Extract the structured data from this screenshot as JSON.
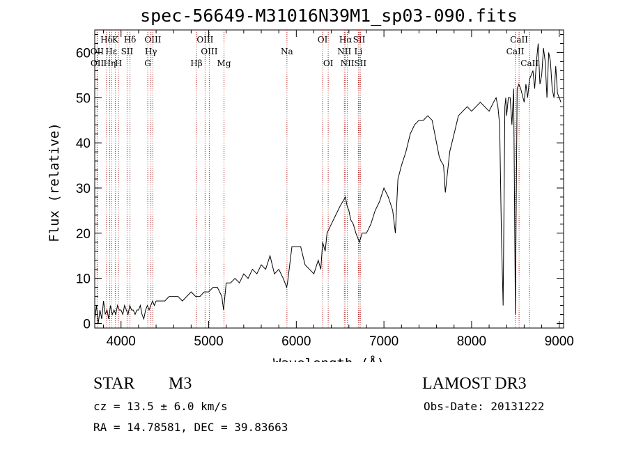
{
  "chart_data": {
    "type": "line",
    "title": "spec-56649-M31016N39M1_sp03-090.fits",
    "xlabel": "Wavelength (Å)",
    "ylabel": "Flux (relative)",
    "xlim": [
      3700,
      9050
    ],
    "ylim": [
      -1,
      65
    ],
    "xticks": [
      4000,
      5000,
      6000,
      7000,
      8000,
      9000
    ],
    "yticks": [
      0,
      10,
      20,
      30,
      40,
      50,
      60
    ],
    "spectrum": {
      "name": "flux",
      "x": [
        3700,
        3720,
        3740,
        3760,
        3780,
        3800,
        3820,
        3840,
        3860,
        3880,
        3900,
        3920,
        3940,
        3960,
        3980,
        4000,
        4020,
        4040,
        4060,
        4080,
        4100,
        4120,
        4140,
        4160,
        4180,
        4200,
        4220,
        4240,
        4260,
        4280,
        4300,
        4320,
        4340,
        4360,
        4380,
        4400,
        4450,
        4500,
        4550,
        4600,
        4650,
        4700,
        4750,
        4800,
        4850,
        4900,
        4950,
        5000,
        5050,
        5100,
        5150,
        5170,
        5200,
        5250,
        5300,
        5350,
        5400,
        5450,
        5500,
        5550,
        5600,
        5650,
        5700,
        5750,
        5800,
        5850,
        5890,
        5900,
        5950,
        6000,
        6050,
        6100,
        6150,
        6200,
        6250,
        6280,
        6300,
        6330,
        6350,
        6400,
        6450,
        6500,
        6530,
        6560,
        6580,
        6600,
        6620,
        6650,
        6680,
        6700,
        6720,
        6750,
        6800,
        6850,
        6900,
        6950,
        7000,
        7050,
        7100,
        7130,
        7160,
        7200,
        7250,
        7300,
        7350,
        7400,
        7450,
        7500,
        7550,
        7600,
        7630,
        7650,
        7680,
        7700,
        7750,
        7800,
        7850,
        7900,
        7950,
        8000,
        8050,
        8100,
        8150,
        8200,
        8250,
        8280,
        8300,
        8320,
        8340,
        8360,
        8380,
        8390,
        8400,
        8420,
        8440,
        8460,
        8480,
        8500,
        8520,
        8540,
        8560,
        8600,
        8620,
        8640,
        8660,
        8680,
        8700,
        8720,
        8740,
        8760,
        8780,
        8800,
        8820,
        8840,
        8860,
        8880,
        8900,
        8920,
        8940,
        8960,
        8980,
        9000,
        9020
      ],
      "y": [
        1,
        4,
        0,
        3,
        1,
        5,
        2,
        3,
        1,
        4,
        2,
        3,
        2,
        4,
        3,
        3,
        2,
        4,
        3,
        2,
        4,
        3,
        3,
        2,
        3,
        3,
        4,
        2,
        1,
        3,
        4,
        3,
        4,
        5,
        4,
        5,
        5,
        5,
        6,
        6,
        6,
        5,
        6,
        7,
        6,
        6,
        7,
        7,
        8,
        8,
        6,
        3,
        9,
        9,
        10,
        9,
        11,
        10,
        12,
        11,
        13,
        12,
        15,
        11,
        12,
        10,
        8,
        9,
        17,
        17,
        17,
        13,
        12,
        11,
        14,
        12,
        18,
        16,
        20,
        22,
        24,
        26,
        27,
        28,
        26,
        25,
        23,
        22,
        20,
        19,
        18,
        20,
        20,
        22,
        25,
        27,
        30,
        28,
        25,
        20,
        32,
        35,
        38,
        42,
        44,
        45,
        45,
        46,
        45,
        40,
        37,
        36,
        35,
        29,
        38,
        42,
        46,
        47,
        48,
        47,
        48,
        49,
        48,
        47,
        49,
        50,
        48,
        44,
        20,
        4,
        48,
        50,
        46,
        50,
        50,
        44,
        52,
        2,
        52,
        53,
        52,
        49,
        53,
        50,
        54,
        55,
        56,
        52,
        58,
        62,
        53,
        55,
        61,
        58,
        50,
        60,
        58,
        52,
        50,
        57,
        51,
        50,
        49
      ]
    },
    "line_markers": [
      {
        "label": "Hδ",
        "wavelength": 3835,
        "row": 1
      },
      {
        "label": "Hε",
        "wavelength": 3889,
        "row": 2
      },
      {
        "label": "OII",
        "wavelength": 3727,
        "row": 2
      },
      {
        "label": "OII",
        "wavelength": 3729,
        "row": 3
      },
      {
        "label": "Hη",
        "wavelength": 3870,
        "row": 3
      },
      {
        "label": "K",
        "wavelength": 3934,
        "row": 1
      },
      {
        "label": "SII",
        "wavelength": 4069,
        "row": 2
      },
      {
        "label": "H",
        "wavelength": 3970,
        "row": 3
      },
      {
        "label": "Hδ",
        "wavelength": 4102,
        "row": 1
      },
      {
        "label": "OIII",
        "wavelength": 4363,
        "row": 1
      },
      {
        "label": "Hγ",
        "wavelength": 4341,
        "row": 2
      },
      {
        "label": "G",
        "wavelength": 4305,
        "row": 3
      },
      {
        "label": "Hβ",
        "wavelength": 4861,
        "row": 3
      },
      {
        "label": "OIII",
        "wavelength": 4959,
        "row": 1
      },
      {
        "label": "OIII",
        "wavelength": 5007,
        "row": 2
      },
      {
        "label": "Mg",
        "wavelength": 5175,
        "row": 3
      },
      {
        "label": "Na",
        "wavelength": 5893,
        "row": 2
      },
      {
        "label": "OI",
        "wavelength": 6300,
        "row": 1
      },
      {
        "label": "OI",
        "wavelength": 6364,
        "row": 3
      },
      {
        "label": "Hα",
        "wavelength": 6563,
        "row": 1
      },
      {
        "label": "NII",
        "wavelength": 6548,
        "row": 2
      },
      {
        "label": "NII",
        "wavelength": 6583,
        "row": 3
      },
      {
        "label": "SII",
        "wavelength": 6717,
        "row": 1
      },
      {
        "label": "Li",
        "wavelength": 6708,
        "row": 2
      },
      {
        "label": "SII",
        "wavelength": 6731,
        "row": 3
      },
      {
        "label": "CaII",
        "wavelength": 8542,
        "row": 1
      },
      {
        "label": "CaII",
        "wavelength": 8498,
        "row": 2
      },
      {
        "label": "CaII",
        "wavelength": 8662,
        "row": 3
      }
    ]
  },
  "info": {
    "class": "STAR",
    "subclass": "M3",
    "survey": "LAMOST DR3",
    "cz": "cz = 13.5 ± 6.0 km/s",
    "obs_date": "Obs-Date: 20131222",
    "coords": "RA =  14.78581, DEC =  39.83663"
  },
  "colors": {
    "marker": "#b22222",
    "spectrum": "#000000"
  }
}
